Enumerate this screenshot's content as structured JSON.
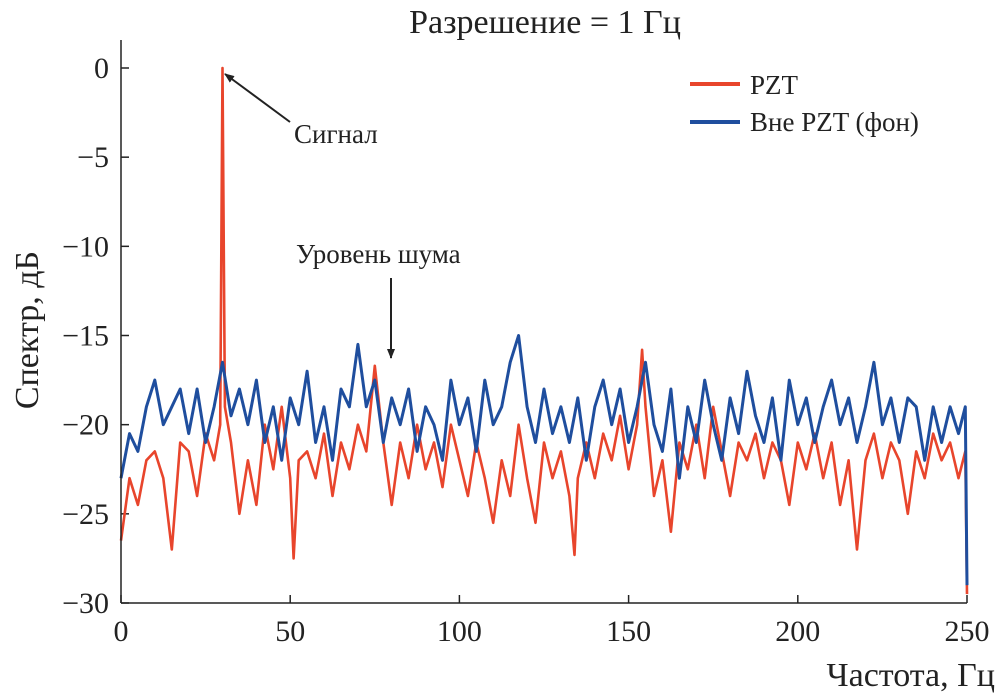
{
  "chart_data": {
    "type": "line",
    "title": "Разрешение = 1 Гц",
    "xlabel": "Частота, Гц",
    "ylabel": "Спектр, дБ",
    "xlim": [
      0,
      250
    ],
    "ylim": [
      -30,
      0
    ],
    "xticks": [
      0,
      50,
      100,
      150,
      200,
      250
    ],
    "yticks": [
      0,
      -5,
      -10,
      -15,
      -20,
      -25,
      -30
    ],
    "xtick_labels": [
      "0",
      "50",
      "100",
      "150",
      "200",
      "250"
    ],
    "ytick_labels": [
      "0",
      "−5",
      "−10",
      "−15",
      "−20",
      "−25",
      "−30"
    ],
    "grid": false,
    "legend_position": "top-right",
    "series": [
      {
        "name": "PZT",
        "color": "#e8452c",
        "points": [
          [
            0,
            -26.5
          ],
          [
            2.5,
            -23
          ],
          [
            5,
            -24.5
          ],
          [
            7.5,
            -22
          ],
          [
            10,
            -21.5
          ],
          [
            12.5,
            -23
          ],
          [
            15,
            -27
          ],
          [
            17.5,
            -21
          ],
          [
            20,
            -21.5
          ],
          [
            22.5,
            -24
          ],
          [
            25,
            -20.5
          ],
          [
            27.5,
            -22
          ],
          [
            29.3,
            -20
          ],
          [
            30,
            0
          ],
          [
            30.7,
            -19
          ],
          [
            32.5,
            -21
          ],
          [
            35,
            -25
          ],
          [
            37.5,
            -22
          ],
          [
            40,
            -24.5
          ],
          [
            42.5,
            -20
          ],
          [
            45,
            -22.5
          ],
          [
            47.5,
            -19
          ],
          [
            50,
            -23
          ],
          [
            51,
            -27.5
          ],
          [
            52.5,
            -22
          ],
          [
            55,
            -21.5
          ],
          [
            57.5,
            -23
          ],
          [
            60,
            -20.5
          ],
          [
            62.5,
            -24
          ],
          [
            65,
            -21
          ],
          [
            67.5,
            -22.5
          ],
          [
            70,
            -20
          ],
          [
            72.5,
            -21.5
          ],
          [
            75,
            -16.7
          ],
          [
            77.5,
            -21
          ],
          [
            80,
            -24.5
          ],
          [
            82.5,
            -21
          ],
          [
            85,
            -23
          ],
          [
            87.5,
            -20
          ],
          [
            90,
            -22.5
          ],
          [
            92.5,
            -21
          ],
          [
            95,
            -23.5
          ],
          [
            97.5,
            -20
          ],
          [
            100,
            -22
          ],
          [
            102.5,
            -24
          ],
          [
            105,
            -21
          ],
          [
            107.5,
            -23
          ],
          [
            110,
            -25.5
          ],
          [
            112.5,
            -22
          ],
          [
            115,
            -24
          ],
          [
            117.5,
            -20
          ],
          [
            120,
            -23
          ],
          [
            122.5,
            -25.5
          ],
          [
            125,
            -21
          ],
          [
            127.5,
            -23
          ],
          [
            130,
            -21.5
          ],
          [
            132.5,
            -24
          ],
          [
            134,
            -27.3
          ],
          [
            135,
            -23
          ],
          [
            137.5,
            -21
          ],
          [
            140,
            -23
          ],
          [
            142.5,
            -20.5
          ],
          [
            145,
            -22
          ],
          [
            147.5,
            -19.5
          ],
          [
            150,
            -22.5
          ],
          [
            152.5,
            -20
          ],
          [
            154,
            -15.8
          ],
          [
            155,
            -19
          ],
          [
            157.5,
            -24
          ],
          [
            160,
            -22
          ],
          [
            162.5,
            -26
          ],
          [
            165,
            -21
          ],
          [
            167.5,
            -22.5
          ],
          [
            170,
            -20
          ],
          [
            172.5,
            -23
          ],
          [
            175,
            -19
          ],
          [
            177.5,
            -21.5
          ],
          [
            180,
            -24
          ],
          [
            182.5,
            -21
          ],
          [
            185,
            -22
          ],
          [
            187.5,
            -20.5
          ],
          [
            190,
            -23
          ],
          [
            192.5,
            -21
          ],
          [
            195,
            -22
          ],
          [
            197.5,
            -24.5
          ],
          [
            200,
            -21
          ],
          [
            202.5,
            -22.5
          ],
          [
            205,
            -20.5
          ],
          [
            207.5,
            -23
          ],
          [
            210,
            -21
          ],
          [
            212.5,
            -24.5
          ],
          [
            215,
            -22
          ],
          [
            217.5,
            -27
          ],
          [
            220,
            -22
          ],
          [
            222.5,
            -20.5
          ],
          [
            225,
            -23
          ],
          [
            227.5,
            -21
          ],
          [
            230,
            -22
          ],
          [
            232.5,
            -25
          ],
          [
            235,
            -21.5
          ],
          [
            237.5,
            -23
          ],
          [
            240,
            -20.5
          ],
          [
            242.5,
            -22
          ],
          [
            245,
            -21
          ],
          [
            247.5,
            -23
          ],
          [
            249.5,
            -21.5
          ],
          [
            250,
            -29.5
          ]
        ]
      },
      {
        "name": "Вне PZT (фон)",
        "color": "#1f4e9e",
        "points": [
          [
            0,
            -23
          ],
          [
            2.5,
            -20.5
          ],
          [
            5,
            -21.5
          ],
          [
            7.5,
            -19
          ],
          [
            10,
            -17.5
          ],
          [
            12.5,
            -20
          ],
          [
            15,
            -19
          ],
          [
            17.5,
            -18
          ],
          [
            20,
            -20.5
          ],
          [
            22.5,
            -18
          ],
          [
            25,
            -21
          ],
          [
            27.5,
            -19
          ],
          [
            30,
            -16.5
          ],
          [
            32.5,
            -19.5
          ],
          [
            35,
            -18
          ],
          [
            37.5,
            -20
          ],
          [
            40,
            -17.5
          ],
          [
            42.5,
            -21
          ],
          [
            45,
            -19
          ],
          [
            47.5,
            -22
          ],
          [
            50,
            -18.5
          ],
          [
            52.5,
            -20
          ],
          [
            55,
            -17
          ],
          [
            57.5,
            -21
          ],
          [
            60,
            -19
          ],
          [
            62.5,
            -22
          ],
          [
            65,
            -18
          ],
          [
            67.5,
            -19
          ],
          [
            70,
            -15.5
          ],
          [
            72.5,
            -19
          ],
          [
            75,
            -17.5
          ],
          [
            77.5,
            -21
          ],
          [
            80,
            -18.5
          ],
          [
            82.5,
            -20
          ],
          [
            85,
            -18
          ],
          [
            87.5,
            -21.5
          ],
          [
            90,
            -19
          ],
          [
            92.5,
            -20
          ],
          [
            95,
            -22
          ],
          [
            97.5,
            -17.5
          ],
          [
            100,
            -20
          ],
          [
            102.5,
            -18.5
          ],
          [
            105,
            -21.5
          ],
          [
            107.5,
            -17.5
          ],
          [
            110,
            -20
          ],
          [
            112.5,
            -19
          ],
          [
            115,
            -16.5
          ],
          [
            117.5,
            -15
          ],
          [
            120,
            -19
          ],
          [
            122.5,
            -21
          ],
          [
            125,
            -18
          ],
          [
            127.5,
            -20.5
          ],
          [
            130,
            -19
          ],
          [
            132.5,
            -21
          ],
          [
            135,
            -18.5
          ],
          [
            137.5,
            -22
          ],
          [
            140,
            -19
          ],
          [
            142.5,
            -17.5
          ],
          [
            145,
            -20
          ],
          [
            147.5,
            -18
          ],
          [
            150,
            -21
          ],
          [
            152.5,
            -19
          ],
          [
            155,
            -16.5
          ],
          [
            157.5,
            -20
          ],
          [
            160,
            -21.5
          ],
          [
            162.5,
            -18
          ],
          [
            165,
            -23
          ],
          [
            167.5,
            -19
          ],
          [
            170,
            -21
          ],
          [
            172.5,
            -17.5
          ],
          [
            175,
            -20
          ],
          [
            177.5,
            -22
          ],
          [
            180,
            -18.5
          ],
          [
            182.5,
            -20.5
          ],
          [
            185,
            -17
          ],
          [
            187.5,
            -19.5
          ],
          [
            190,
            -21
          ],
          [
            192.5,
            -18.5
          ],
          [
            195,
            -22
          ],
          [
            197.5,
            -17.5
          ],
          [
            200,
            -20
          ],
          [
            202.5,
            -18.5
          ],
          [
            205,
            -21
          ],
          [
            207.5,
            -19
          ],
          [
            210,
            -17.5
          ],
          [
            212.5,
            -20
          ],
          [
            215,
            -18.5
          ],
          [
            217.5,
            -21
          ],
          [
            220,
            -19
          ],
          [
            222.5,
            -16.5
          ],
          [
            225,
            -20
          ],
          [
            227.5,
            -18.5
          ],
          [
            230,
            -21
          ],
          [
            232.5,
            -18.5
          ],
          [
            235,
            -19
          ],
          [
            237.5,
            -22
          ],
          [
            240,
            -19
          ],
          [
            242.5,
            -21
          ],
          [
            245,
            -19
          ],
          [
            247.5,
            -20.5
          ],
          [
            249.5,
            -19
          ],
          [
            250,
            -29
          ]
        ]
      }
    ],
    "annotations": [
      {
        "text": "Сигнал",
        "points_to": [
          30,
          0
        ]
      },
      {
        "text": "Уровень шума",
        "points_to": [
          80,
          -17
        ]
      }
    ]
  }
}
